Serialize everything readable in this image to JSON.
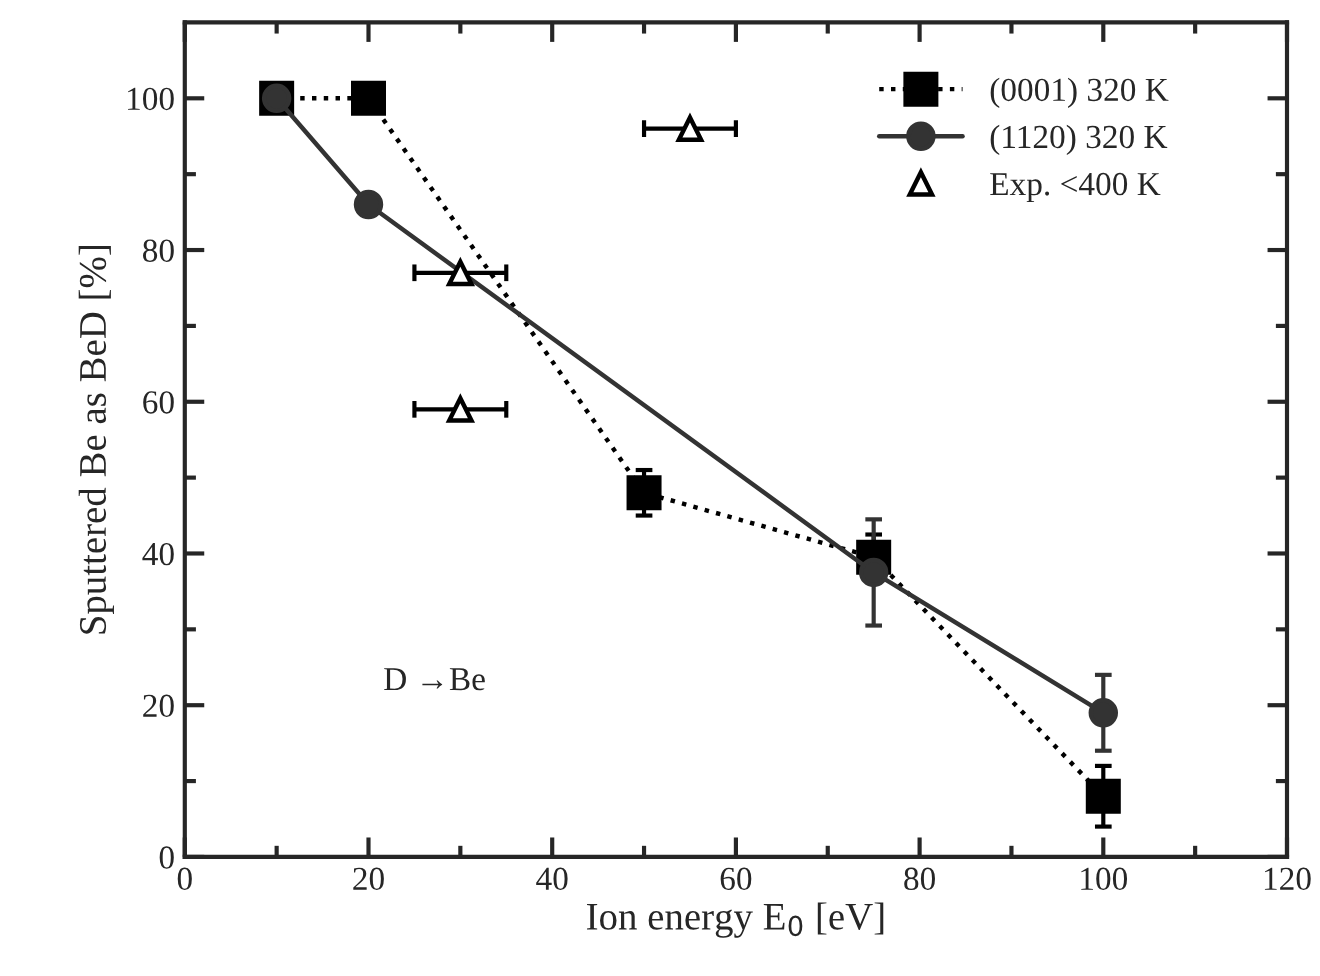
{
  "chart_data": {
    "type": "line",
    "xlabel": "Ion energy E$_{0}$ [eV]",
    "ylabel": "Sputtered Be as BeD [%]",
    "xlim": [
      0,
      120
    ],
    "xticks": [
      0,
      20,
      40,
      60,
      80,
      100,
      120
    ],
    "ylim": [
      0,
      110
    ],
    "yticks": [
      0,
      20,
      40,
      60,
      80,
      100
    ],
    "legend": "top right",
    "grid": false,
    "annotations": [
      "D →Be"
    ],
    "series": [
      {
        "name": "(0001) 320 K",
        "color": "#000000",
        "marker": "square",
        "line_style": "dotted",
        "x": [
          10,
          20,
          50,
          75,
          100
        ],
        "values": [
          100,
          100,
          48,
          39.5,
          8
        ],
        "errors": [
          null,
          null,
          3,
          3,
          4
        ]
      },
      {
        "name": "(1120) 320 K",
        "color": "#333333",
        "marker": "circle",
        "line_style": "solid",
        "x": [
          10,
          20,
          75,
          100
        ],
        "values": [
          100,
          86,
          37.5,
          19
        ],
        "errors": [
          null,
          null,
          7,
          5
        ]
      },
      {
        "name": "Exp. <400 K",
        "type": "scatter",
        "color": "#000000",
        "marker": "triangle",
        "x": [
          55,
          30,
          30
        ],
        "values": [
          96,
          77,
          59
        ],
        "xerrors": [
          5,
          5,
          5
        ]
      }
    ]
  }
}
